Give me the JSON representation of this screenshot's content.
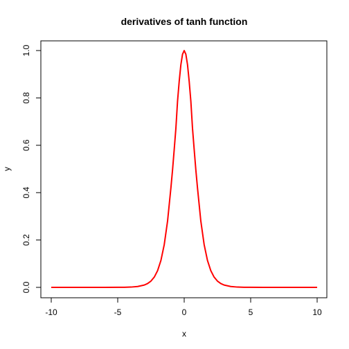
{
  "chart_data": {
    "type": "line",
    "title": "derivatives of tanh function",
    "xlabel": "x",
    "ylabel": "y",
    "xlim": [
      -10,
      10
    ],
    "ylim": [
      0,
      1
    ],
    "x_ticks": [
      -10,
      -5,
      0,
      5,
      10
    ],
    "y_ticks": [
      0.0,
      0.2,
      0.4,
      0.6,
      0.8,
      1.0
    ],
    "x_tick_labels": [
      "-10",
      "-5",
      "0",
      "5",
      "10"
    ],
    "y_tick_labels": [
      "0.0",
      "0.2",
      "0.4",
      "0.6",
      "0.8",
      "1.0"
    ],
    "grid": false,
    "series": [
      {
        "color": "#ff0000",
        "function": "1 - tanh(x)^2",
        "x": [
          -10,
          -9,
          -8,
          -7,
          -6,
          -5,
          -4.5,
          -4,
          -3.5,
          -3,
          -2.75,
          -2.5,
          -2.25,
          -2,
          -1.75,
          -1.5,
          -1.25,
          -1,
          -0.875,
          -0.75,
          -0.625,
          -0.5,
          -0.375,
          -0.25,
          -0.125,
          0,
          0.125,
          0.25,
          0.375,
          0.5,
          0.625,
          0.75,
          0.875,
          1,
          1.25,
          1.5,
          1.75,
          2,
          2.25,
          2.5,
          2.75,
          3,
          3.5,
          4,
          4.5,
          5,
          6,
          7,
          8,
          9,
          10
        ],
        "y": [
          0,
          0,
          0,
          0,
          0,
          0.0002,
          0.0005,
          0.0013,
          0.0036,
          0.0099,
          0.0163,
          0.0266,
          0.0434,
          0.0707,
          0.1139,
          0.1807,
          0.2802,
          0.42,
          0.4965,
          0.5828,
          0.6715,
          0.7864,
          0.8702,
          0.9401,
          0.9845,
          1,
          0.9845,
          0.9401,
          0.8702,
          0.7864,
          0.6715,
          0.5828,
          0.4965,
          0.42,
          0.2802,
          0.1807,
          0.1139,
          0.0707,
          0.0434,
          0.0266,
          0.0163,
          0.0099,
          0.0036,
          0.0013,
          0.0005,
          0.0002,
          0,
          0,
          0,
          0,
          0
        ]
      }
    ]
  }
}
